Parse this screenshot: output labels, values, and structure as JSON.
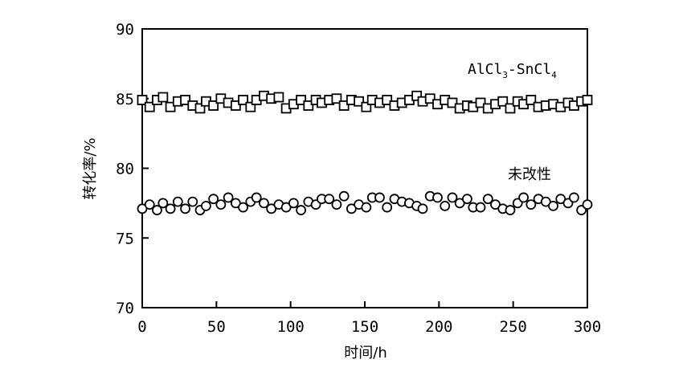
{
  "chart_data": {
    "type": "scatter",
    "xlabel": "时间/h",
    "ylabel": "转化率/%",
    "xlim": [
      0,
      300
    ],
    "ylim": [
      70,
      90
    ],
    "xticks": [
      "0",
      "50",
      "100",
      "150",
      "200",
      "250",
      "300"
    ],
    "yticks": [
      "90",
      "85",
      "80",
      "75",
      "70"
    ],
    "grid": false,
    "series": [
      {
        "name": "AlCl3-SnCl4",
        "label_main": "AlCl",
        "label_sub1": "3",
        "label_mid": "-SnCl",
        "label_sub2": "4",
        "marker": "square",
        "x": [
          0,
          5,
          10,
          14,
          19,
          24,
          29,
          34,
          39,
          43,
          48,
          53,
          58,
          63,
          68,
          73,
          77,
          82,
          87,
          92,
          97,
          102,
          107,
          112,
          117,
          121,
          126,
          131,
          136,
          141,
          146,
          151,
          155,
          160,
          165,
          170,
          175,
          180,
          185,
          189,
          194,
          199,
          204,
          209,
          214,
          219,
          223,
          228,
          233,
          238,
          243,
          248,
          253,
          257,
          262,
          267,
          272,
          277,
          282,
          287,
          291,
          296,
          300
        ],
        "y": [
          84.9,
          84.4,
          84.9,
          85.1,
          84.4,
          84.8,
          84.9,
          84.5,
          84.3,
          84.8,
          84.5,
          85.0,
          84.7,
          84.5,
          84.9,
          84.4,
          84.9,
          85.2,
          85.0,
          85.1,
          84.3,
          84.6,
          84.9,
          84.5,
          84.9,
          84.7,
          84.9,
          85.0,
          84.5,
          84.9,
          84.8,
          84.4,
          84.9,
          84.7,
          84.9,
          84.5,
          84.7,
          84.9,
          85.2,
          84.8,
          85.0,
          84.6,
          84.9,
          84.7,
          84.3,
          84.5,
          84.4,
          84.7,
          84.3,
          84.6,
          84.8,
          84.3,
          84.8,
          84.6,
          84.9,
          84.4,
          84.5,
          84.6,
          84.4,
          84.7,
          84.5,
          84.8,
          84.9
        ]
      },
      {
        "name": "未改性",
        "marker": "circle",
        "x": [
          0,
          5,
          10,
          14,
          19,
          24,
          29,
          34,
          39,
          43,
          48,
          53,
          58,
          63,
          68,
          73,
          77,
          82,
          87,
          92,
          97,
          102,
          107,
          112,
          117,
          121,
          126,
          131,
          136,
          141,
          146,
          151,
          155,
          160,
          165,
          170,
          175,
          180,
          185,
          189,
          194,
          199,
          204,
          209,
          214,
          219,
          223,
          228,
          233,
          238,
          243,
          248,
          253,
          257,
          262,
          267,
          272,
          277,
          282,
          287,
          291,
          296,
          300
        ],
        "y": [
          77.1,
          77.4,
          77.0,
          77.5,
          77.1,
          77.6,
          77.1,
          77.6,
          77.0,
          77.3,
          77.8,
          77.4,
          77.9,
          77.5,
          77.2,
          77.6,
          77.9,
          77.5,
          77.1,
          77.4,
          77.2,
          77.5,
          77.0,
          77.6,
          77.4,
          77.8,
          77.8,
          77.4,
          78.0,
          77.1,
          77.4,
          77.2,
          77.9,
          77.9,
          77.2,
          77.8,
          77.6,
          77.5,
          77.3,
          77.1,
          78.0,
          77.9,
          77.3,
          77.9,
          77.5,
          77.8,
          77.2,
          77.2,
          77.8,
          77.4,
          77.1,
          77.0,
          77.5,
          77.9,
          77.4,
          77.8,
          77.6,
          77.3,
          77.8,
          77.5,
          77.9,
          77.0,
          77.4
        ]
      }
    ]
  }
}
